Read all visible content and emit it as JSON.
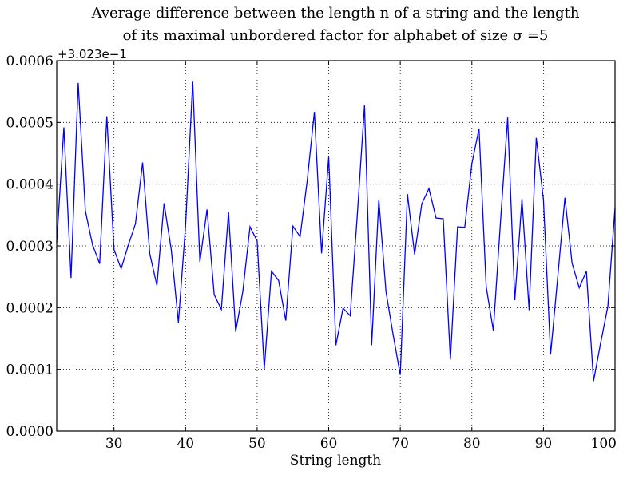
{
  "chart_data": {
    "type": "line",
    "title_lines": [
      "Average difference between the length n of a string and the length",
      "of its maximal unbordered factor for alphabet of size σ =5"
    ],
    "xlabel": "String length",
    "ylabel": "",
    "y_offset_label": "+3.023e−1",
    "xlim": [
      22,
      100
    ],
    "ylim": [
      0.0,
      0.0006
    ],
    "x_ticks": [
      30,
      40,
      50,
      60,
      70,
      80,
      90,
      100
    ],
    "x_tick_labels": [
      "30",
      "40",
      "50",
      "60",
      "70",
      "80",
      "90",
      "100"
    ],
    "y_ticks": [
      0.0,
      0.0001,
      0.0002,
      0.0003,
      0.0004,
      0.0005,
      0.0006
    ],
    "y_tick_labels": [
      "0.0000",
      "0.0001",
      "0.0002",
      "0.0003",
      "0.0004",
      "0.0005",
      "0.0006"
    ],
    "grid": true,
    "line_color": "#0000ff",
    "series": [
      {
        "x": [
          22,
          23,
          24,
          25,
          26,
          27,
          28,
          29,
          30,
          31,
          32,
          33,
          34,
          35,
          36,
          37,
          38,
          39,
          40,
          41,
          42,
          43,
          44,
          45,
          46,
          47,
          48,
          49,
          50,
          51,
          52,
          53,
          54,
          55,
          56,
          57,
          58,
          59,
          60,
          61,
          62,
          63,
          64,
          65,
          66,
          67,
          68,
          69,
          70,
          71,
          72,
          73,
          74,
          75,
          76,
          77,
          78,
          79,
          80,
          81,
          82,
          83,
          84,
          85,
          86,
          87,
          88,
          89,
          90,
          91,
          92,
          93,
          94,
          95,
          96,
          97,
          98,
          99,
          100
        ],
        "values": [
          0.000305,
          0.000492,
          0.000248,
          0.000564,
          0.000357,
          0.000302,
          0.000271,
          0.00051,
          0.000294,
          0.000263,
          0.000301,
          0.000336,
          0.000435,
          0.000287,
          0.000236,
          0.000369,
          0.000294,
          0.000176,
          0.000333,
          0.000566,
          0.000274,
          0.000359,
          0.000221,
          0.000197,
          0.000355,
          0.000161,
          0.000226,
          0.000331,
          0.000308,
          0.000101,
          0.000259,
          0.000244,
          0.000179,
          0.000332,
          0.000315,
          0.000406,
          0.000517,
          0.000288,
          0.000444,
          0.000139,
          0.000199,
          0.000187,
          0.000351,
          0.000528,
          0.000139,
          0.000375,
          0.000226,
          0.000156,
          9.1e-05,
          0.000384,
          0.000286,
          0.000368,
          0.000393,
          0.000345,
          0.000344,
          0.000116,
          0.000331,
          0.00033,
          0.000433,
          0.00049,
          0.000234,
          0.000163,
          0.000339,
          0.000508,
          0.000212,
          0.000376,
          0.000196,
          0.000475,
          0.000375,
          0.000124,
          0.00025,
          0.000378,
          0.000272,
          0.000232,
          0.000259,
          8.1e-05,
          0.000143,
          0.000202,
          0.000362
        ]
      }
    ]
  }
}
